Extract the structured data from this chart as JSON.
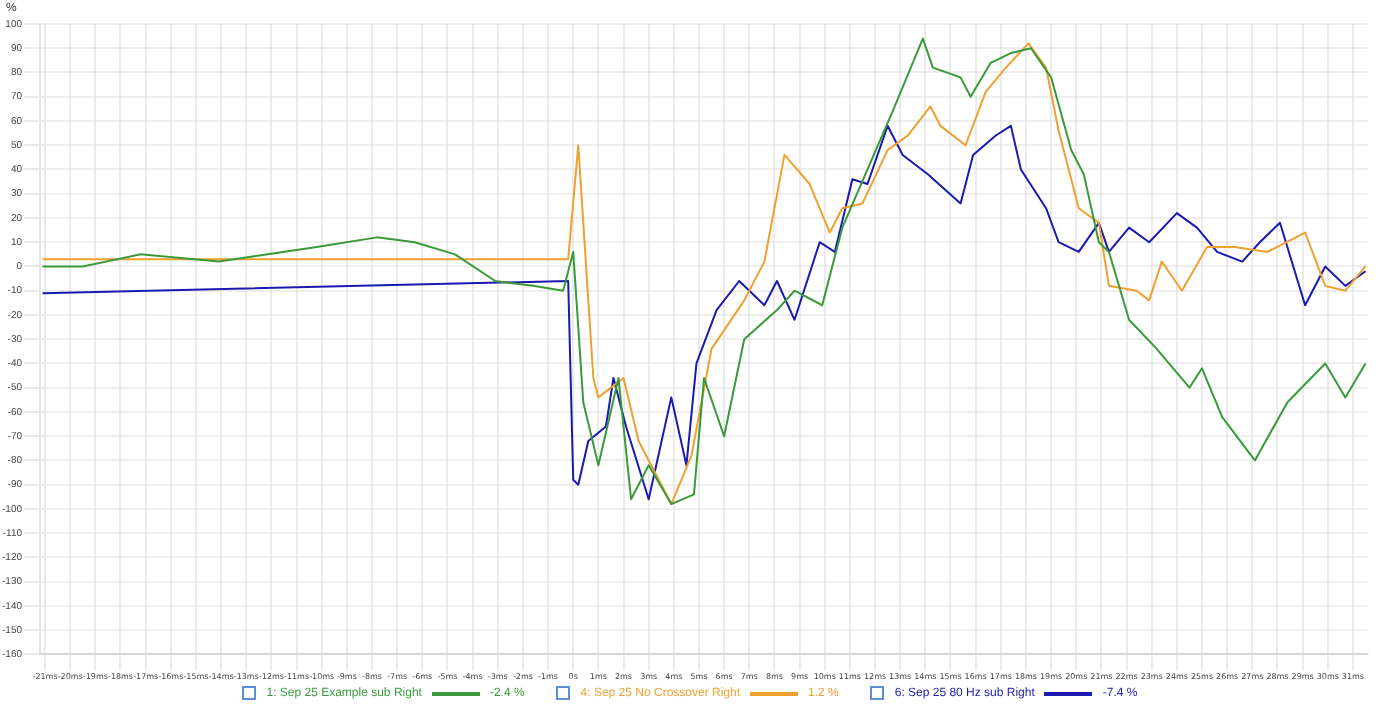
{
  "chart_data": {
    "type": "line",
    "ylabel": "%",
    "legend": "bottom",
    "grid": true,
    "marker": "none",
    "line_style": "solid",
    "xlim": [
      -21.2,
      31.6
    ],
    "ylim": [
      -160,
      100
    ],
    "yticks": [
      -160,
      -150,
      -140,
      -130,
      -120,
      -110,
      -100,
      -90,
      -80,
      -70,
      -60,
      -50,
      -40,
      -30,
      -20,
      -10,
      0,
      10,
      20,
      30,
      40,
      50,
      60,
      70,
      80,
      90,
      100
    ],
    "xticks": [
      {
        "value": -21,
        "label": "-21ms"
      },
      {
        "value": -20,
        "label": "-20ms"
      },
      {
        "value": -19,
        "label": "-19ms"
      },
      {
        "value": -18,
        "label": "-18ms"
      },
      {
        "value": -17,
        "label": "-17ms"
      },
      {
        "value": -16,
        "label": "-16ms"
      },
      {
        "value": -15,
        "label": "-15ms"
      },
      {
        "value": -14,
        "label": "-14ms"
      },
      {
        "value": -13,
        "label": "-13ms"
      },
      {
        "value": -12,
        "label": "-12ms"
      },
      {
        "value": -11,
        "label": "-11ms"
      },
      {
        "value": -10,
        "label": "-10ms"
      },
      {
        "value": -9,
        "label": "-9ms"
      },
      {
        "value": -8,
        "label": "-8ms"
      },
      {
        "value": -7,
        "label": "-7ms"
      },
      {
        "value": -6,
        "label": "-6ms"
      },
      {
        "value": -5,
        "label": "-5ms"
      },
      {
        "value": -4,
        "label": "-4ms"
      },
      {
        "value": -3,
        "label": "-3ms"
      },
      {
        "value": -2,
        "label": "-2ms"
      },
      {
        "value": -1,
        "label": "-1ms"
      },
      {
        "value": 0,
        "label": "0s"
      },
      {
        "value": 1,
        "label": "1ms"
      },
      {
        "value": 2,
        "label": "2ms"
      },
      {
        "value": 3,
        "label": "3ms"
      },
      {
        "value": 4,
        "label": "4ms"
      },
      {
        "value": 5,
        "label": "5ms"
      },
      {
        "value": 6,
        "label": "6ms"
      },
      {
        "value": 7,
        "label": "7ms"
      },
      {
        "value": 8,
        "label": "8ms"
      },
      {
        "value": 9,
        "label": "9ms"
      },
      {
        "value": 10,
        "label": "10ms"
      },
      {
        "value": 11,
        "label": "11ms"
      },
      {
        "value": 12,
        "label": "12ms"
      },
      {
        "value": 13,
        "label": "13ms"
      },
      {
        "value": 14,
        "label": "14ms"
      },
      {
        "value": 15,
        "label": "15ms"
      },
      {
        "value": 16,
        "label": "16ms"
      },
      {
        "value": 17,
        "label": "17ms"
      },
      {
        "value": 18,
        "label": "18ms"
      },
      {
        "value": 19,
        "label": "19ms"
      },
      {
        "value": 20,
        "label": "20ms"
      },
      {
        "value": 21,
        "label": "21ms"
      },
      {
        "value": 22,
        "label": "22ms"
      },
      {
        "value": 23,
        "label": "23ms"
      },
      {
        "value": 24,
        "label": "24ms"
      },
      {
        "value": 25,
        "label": "25ms"
      },
      {
        "value": 26,
        "label": "26ms"
      },
      {
        "value": 27,
        "label": "27ms"
      },
      {
        "value": 28,
        "label": "28ms"
      },
      {
        "value": 29,
        "label": "29ms"
      },
      {
        "value": 30,
        "label": "30ms"
      },
      {
        "value": 31,
        "label": "31ms"
      }
    ],
    "annotations": [
      "-2.4 %",
      "1.2 %",
      "-7.4 %"
    ],
    "series": [
      {
        "name": "1: Sep 25 Example sub Right",
        "color": "#3a9a3a",
        "x": [
          -21.1,
          -19.5,
          -17.2,
          -14.1,
          -10.2,
          -7.8,
          -6.3,
          -4.7,
          -3.1,
          -1.6,
          -0.4,
          0,
          0.4,
          1.0,
          1.8,
          2.3,
          3.0,
          3.9,
          4.8,
          5.2,
          6.0,
          6.8,
          8.1,
          8.8,
          9.9,
          10.7,
          11.7,
          12.7,
          13.9,
          14.3,
          15.4,
          15.8,
          16.6,
          17.4,
          18.2,
          19.0,
          19.8,
          20.3,
          20.9,
          21.3,
          22.1,
          23.2,
          24.5,
          25.0,
          25.8,
          27.1,
          28.4,
          29.9,
          30.7,
          31.5
        ],
        "values": [
          0,
          0,
          5,
          2,
          8,
          12,
          10,
          5,
          -6,
          -8,
          -10,
          6,
          -56,
          -82,
          -46,
          -96,
          -82,
          -98,
          -94,
          -46,
          -70,
          -30,
          -18,
          -10,
          -16,
          16,
          40,
          64,
          94,
          82,
          78,
          70,
          84,
          88,
          90,
          78,
          48,
          38,
          10,
          6,
          -22,
          -34,
          -50,
          -42,
          -62,
          -80,
          -56,
          -40,
          -54,
          -40
        ]
      },
      {
        "name": "4: Sep 25 No Crossover Right",
        "color": "#f0a030",
        "x": [
          -21.1,
          -0.2,
          0.2,
          0.8,
          1.0,
          2.0,
          2.6,
          3.4,
          3.9,
          4.7,
          5.5,
          6.8,
          7.6,
          8.4,
          9.4,
          10.2,
          10.7,
          11.5,
          12.5,
          13.3,
          14.2,
          14.6,
          15.6,
          16.4,
          17.2,
          18.1,
          18.8,
          19.3,
          20.1,
          20.9,
          21.3,
          22.4,
          22.9,
          23.4,
          24.2,
          25.2,
          26.3,
          27.6,
          29.1,
          29.9,
          30.7,
          31.5
        ],
        "values": [
          3,
          3,
          50,
          -46,
          -54,
          -46,
          -72,
          -88,
          -98,
          -78,
          -34,
          -14,
          2,
          46,
          34,
          14,
          24,
          26,
          48,
          54,
          66,
          58,
          50,
          72,
          82,
          92,
          82,
          56,
          24,
          18,
          -8,
          -10,
          -14,
          2,
          -10,
          8,
          8,
          6,
          14,
          -8,
          -10,
          0
        ]
      },
      {
        "name": "6: Sep 25 80 Hz sub Right",
        "color": "#1a1ab0",
        "x": [
          -21.1,
          -0.2,
          0,
          0.2,
          0.6,
          1.3,
          1.6,
          2.1,
          3.0,
          3.9,
          4.5,
          4.9,
          5.7,
          6.6,
          7.6,
          8.1,
          8.8,
          9.8,
          10.4,
          11.1,
          11.7,
          12.5,
          13.1,
          14.1,
          15.4,
          15.9,
          16.8,
          17.4,
          17.8,
          18.8,
          19.3,
          20.1,
          20.9,
          21.3,
          22.1,
          22.9,
          24.0,
          24.8,
          25.6,
          26.6,
          27.3,
          28.1,
          29.1,
          29.9,
          30.7,
          31.5
        ],
        "values": [
          -11,
          -6,
          -88,
          -90,
          -72,
          -66,
          -46,
          -66,
          -96,
          -54,
          -82,
          -40,
          -18,
          -6,
          -16,
          -6,
          -22,
          10,
          6,
          36,
          34,
          58,
          46,
          38,
          26,
          46,
          54,
          58,
          40,
          24,
          10,
          6,
          18,
          6,
          16,
          10,
          22,
          16,
          6,
          2,
          10,
          18,
          -16,
          0,
          -8,
          -2
        ]
      }
    ]
  }
}
